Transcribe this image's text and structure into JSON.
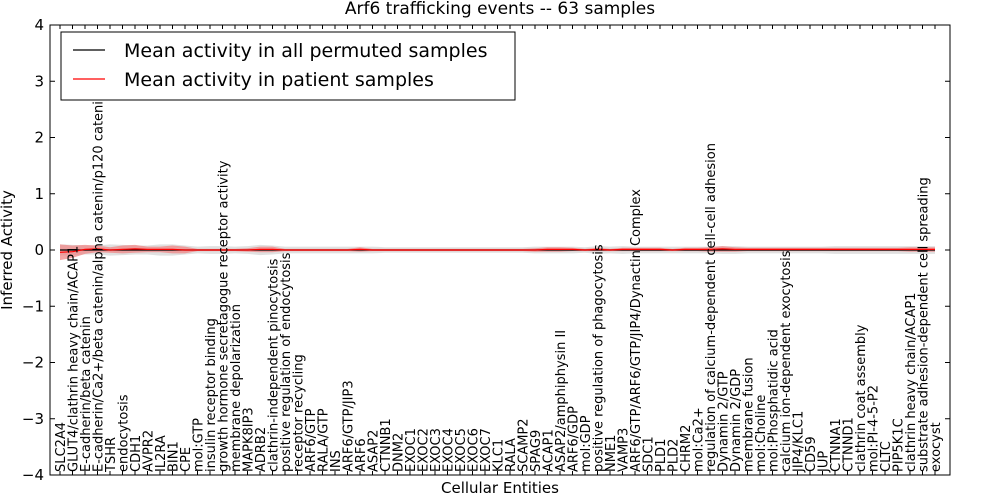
{
  "chart_data": {
    "type": "line",
    "title": "Arf6 trafficking events -- 63 samples",
    "xlabel": "Cellular Entities",
    "ylabel": "Inferred Activity",
    "ylim": [
      -4,
      4
    ],
    "yticks": [
      "−4",
      "−3",
      "−2",
      "−1",
      "0",
      "1",
      "2",
      "3",
      "4"
    ],
    "ytick_values": [
      -4,
      -3,
      -2,
      -1,
      0,
      1,
      2,
      3,
      4
    ],
    "grid": false,
    "legend_position": "top-left",
    "categories": [
      "SLC2A4",
      "GLUT4/clathrin heavy chain/ACAP1",
      "E-cadherin/beta catenin",
      "E-cadherin/Ca2+/beta catenin/alpha catenin/p120 catenin",
      "TSHR",
      "endocytosis",
      "CDH1",
      "AVPR2",
      "IL2RA",
      "BIN1",
      "CPE",
      "mol:GTP",
      "insulin receptor binding",
      "growth hormone secretagogue receptor activity",
      "membrane depolarization",
      "MAPK8IP3",
      "ADRB2",
      "clathrin-independent pinocytosis",
      "positive regulation of endocytosis",
      "receptor recycling",
      "ARF6/GTP",
      "RALA/GTP",
      "INS",
      "ARF6/GTP/JIP3",
      "ARF6",
      "ASAP2",
      "CTNNB1",
      "DNM2",
      "EXOC1",
      "EXOC2",
      "EXOC3",
      "EXOC4",
      "EXOC5",
      "EXOC6",
      "EXOC7",
      "KLC1",
      "RALA",
      "SCAMP2",
      "SPAG9",
      "ACAP1",
      "ASAP2/amphiphysin II",
      "ARF6/GDP",
      "mol:GDP",
      "positive regulation of phagocytosis",
      "NME1",
      "VAMP3",
      "ARF6/GTP/ARF6/GTP/JIP4/Dynactin Complex",
      "SDC1",
      "PLD1",
      "PLD2",
      "CHRM2",
      "mol:Ca2+",
      "regulation of calcium-dependent cell-cell adhesion",
      "Dynamin 2/GTP",
      "Dynamin 2/GDP",
      "membrane fusion",
      "mol:Choline",
      "mol:Phosphatidic acid",
      "calcium ion-dependent exocytosis",
      "JIP4/KLC1",
      "CD59",
      "JUP",
      "CTNNA1",
      "CTNND1",
      "clathrin coat assembly",
      "mol:PI-4-5-P2",
      "CLTC",
      "PIP5K1C",
      "clathrin heavy chain/ACAP1",
      "substrate adhesion-dependent cell spreading",
      "exocyst"
    ],
    "series": [
      {
        "name": "Mean activity in all permuted samples",
        "color": "#000000",
        "band_color": "#bbbbbb",
        "values": [
          0,
          0,
          0,
          0,
          0,
          0,
          0,
          0,
          0,
          0,
          0,
          0,
          0,
          0,
          0,
          0,
          0,
          0,
          0,
          0,
          0,
          0,
          0,
          0,
          0,
          0,
          0,
          0,
          0,
          0,
          0,
          0,
          0,
          0,
          0,
          0,
          0,
          0,
          0,
          0,
          0,
          0,
          0,
          0,
          0,
          0,
          0,
          0,
          0,
          0,
          0,
          0,
          0,
          0,
          0,
          0,
          0,
          0,
          0,
          0,
          0,
          0,
          0,
          0,
          0,
          0,
          0,
          0,
          0,
          0,
          0
        ],
        "band": [
          0.1,
          0.09,
          0.08,
          0.08,
          0.1,
          0.09,
          0.08,
          0.08,
          0.1,
          0.1,
          0.08,
          0.06,
          0.07,
          0.07,
          0.06,
          0.07,
          0.09,
          0.08,
          0.06,
          0.06,
          0.06,
          0.06,
          0.06,
          0.06,
          0.06,
          0.06,
          0.05,
          0.05,
          0.05,
          0.05,
          0.05,
          0.05,
          0.05,
          0.05,
          0.05,
          0.05,
          0.05,
          0.05,
          0.06,
          0.06,
          0.06,
          0.06,
          0.05,
          0.07,
          0.06,
          0.07,
          0.06,
          0.06,
          0.06,
          0.06,
          0.06,
          0.06,
          0.06,
          0.07,
          0.07,
          0.06,
          0.06,
          0.06,
          0.06,
          0.06,
          0.06,
          0.06,
          0.07,
          0.07,
          0.07,
          0.07,
          0.07,
          0.07,
          0.07,
          0.07,
          0.07
        ]
      },
      {
        "name": "Mean activity in patient samples",
        "color": "#ff0000",
        "band_color": "#f08080",
        "values": [
          -0.04,
          -0.03,
          0.01,
          0.02,
          0.0,
          0.01,
          0.02,
          0.01,
          0.01,
          0.01,
          0.0,
          0.0,
          0.0,
          0.0,
          0.0,
          0.0,
          0.01,
          0.01,
          0.0,
          0.0,
          0.0,
          0.0,
          0.0,
          0.0,
          0.01,
          0.0,
          0.0,
          0.0,
          0.0,
          0.0,
          0.0,
          0.0,
          0.0,
          0.0,
          0.0,
          0.0,
          0.0,
          0.0,
          0.0,
          0.01,
          0.01,
          0.01,
          0.0,
          0.01,
          0.0,
          0.01,
          0.01,
          0.01,
          0.01,
          0.0,
          0.01,
          0.01,
          0.01,
          0.02,
          0.01,
          0.01,
          0.01,
          0.01,
          0.01,
          0.01,
          0.01,
          0.01,
          0.01,
          0.01,
          0.01,
          0.01,
          0.01,
          0.01,
          0.01,
          0.01,
          0.01
        ],
        "band": [
          0.14,
          0.11,
          0.08,
          0.06,
          0.05,
          0.07,
          0.07,
          0.05,
          0.05,
          0.07,
          0.06,
          0.02,
          0.02,
          0.02,
          0.02,
          0.03,
          0.05,
          0.05,
          0.02,
          0.02,
          0.02,
          0.02,
          0.02,
          0.02,
          0.04,
          0.02,
          0.02,
          0.02,
          0.02,
          0.02,
          0.02,
          0.02,
          0.02,
          0.02,
          0.02,
          0.02,
          0.02,
          0.02,
          0.03,
          0.04,
          0.04,
          0.03,
          0.02,
          0.03,
          0.02,
          0.03,
          0.03,
          0.03,
          0.03,
          0.02,
          0.03,
          0.03,
          0.04,
          0.05,
          0.04,
          0.03,
          0.03,
          0.03,
          0.03,
          0.03,
          0.03,
          0.03,
          0.03,
          0.03,
          0.03,
          0.03,
          0.03,
          0.03,
          0.04,
          0.04,
          0.04
        ]
      }
    ]
  }
}
